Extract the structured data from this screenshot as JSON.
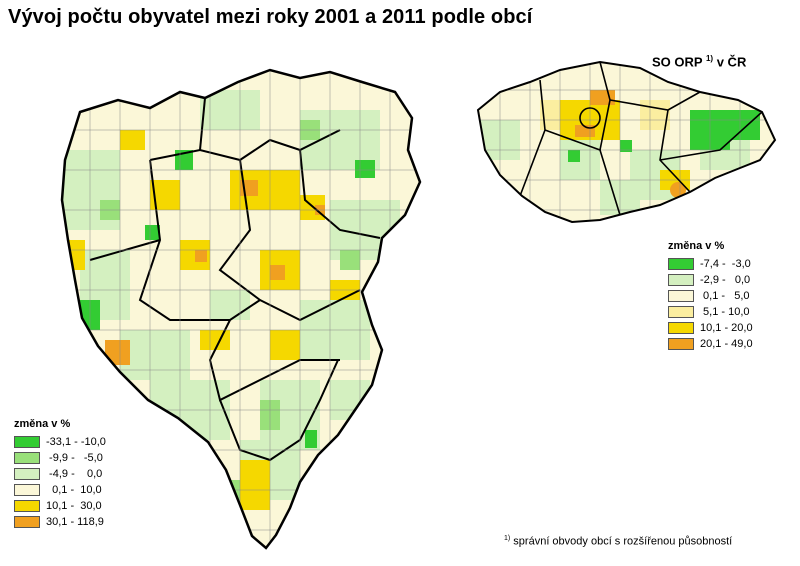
{
  "title": "Vývoj počtu obyvatel mezi roky 2001 a 2011 podle obcí",
  "inset": {
    "title_main": "SO ORP",
    "title_sup": "1)",
    "title_tail": "v ČR"
  },
  "legend_main": {
    "heading": "změna v %",
    "items": [
      {
        "label": "-33,1 - -10,0",
        "color": "#33cc33"
      },
      {
        "label": " -9,9 -   -5,0",
        "color": "#99e07a"
      },
      {
        "label": " -4,9 -    0,0",
        "color": "#d4f0c0"
      },
      {
        "label": "  0,1 -  10,0",
        "color": "#fbf7d8"
      },
      {
        "label": "10,1 -  30,0",
        "color": "#f5d800"
      },
      {
        "label": "30,1 - 118,9",
        "color": "#f0a020"
      }
    ]
  },
  "legend_inset": {
    "heading": "změna v %",
    "items": [
      {
        "label": "-7,4 -  -3,0",
        "color": "#33cc33"
      },
      {
        "label": "-2,9 -   0,0",
        "color": "#d4f0c0"
      },
      {
        "label": " 0,1 -   5,0",
        "color": "#fbf7d8"
      },
      {
        "label": " 5,1 - 10,0",
        "color": "#fbeea0"
      },
      {
        "label": "10,1 - 20,0",
        "color": "#f5d800"
      },
      {
        "label": "20,1 - 49,0",
        "color": "#f0a020"
      }
    ]
  },
  "footnote": {
    "sup": "1)",
    "text": "správní obvody obcí s rozšířenou působností"
  }
}
